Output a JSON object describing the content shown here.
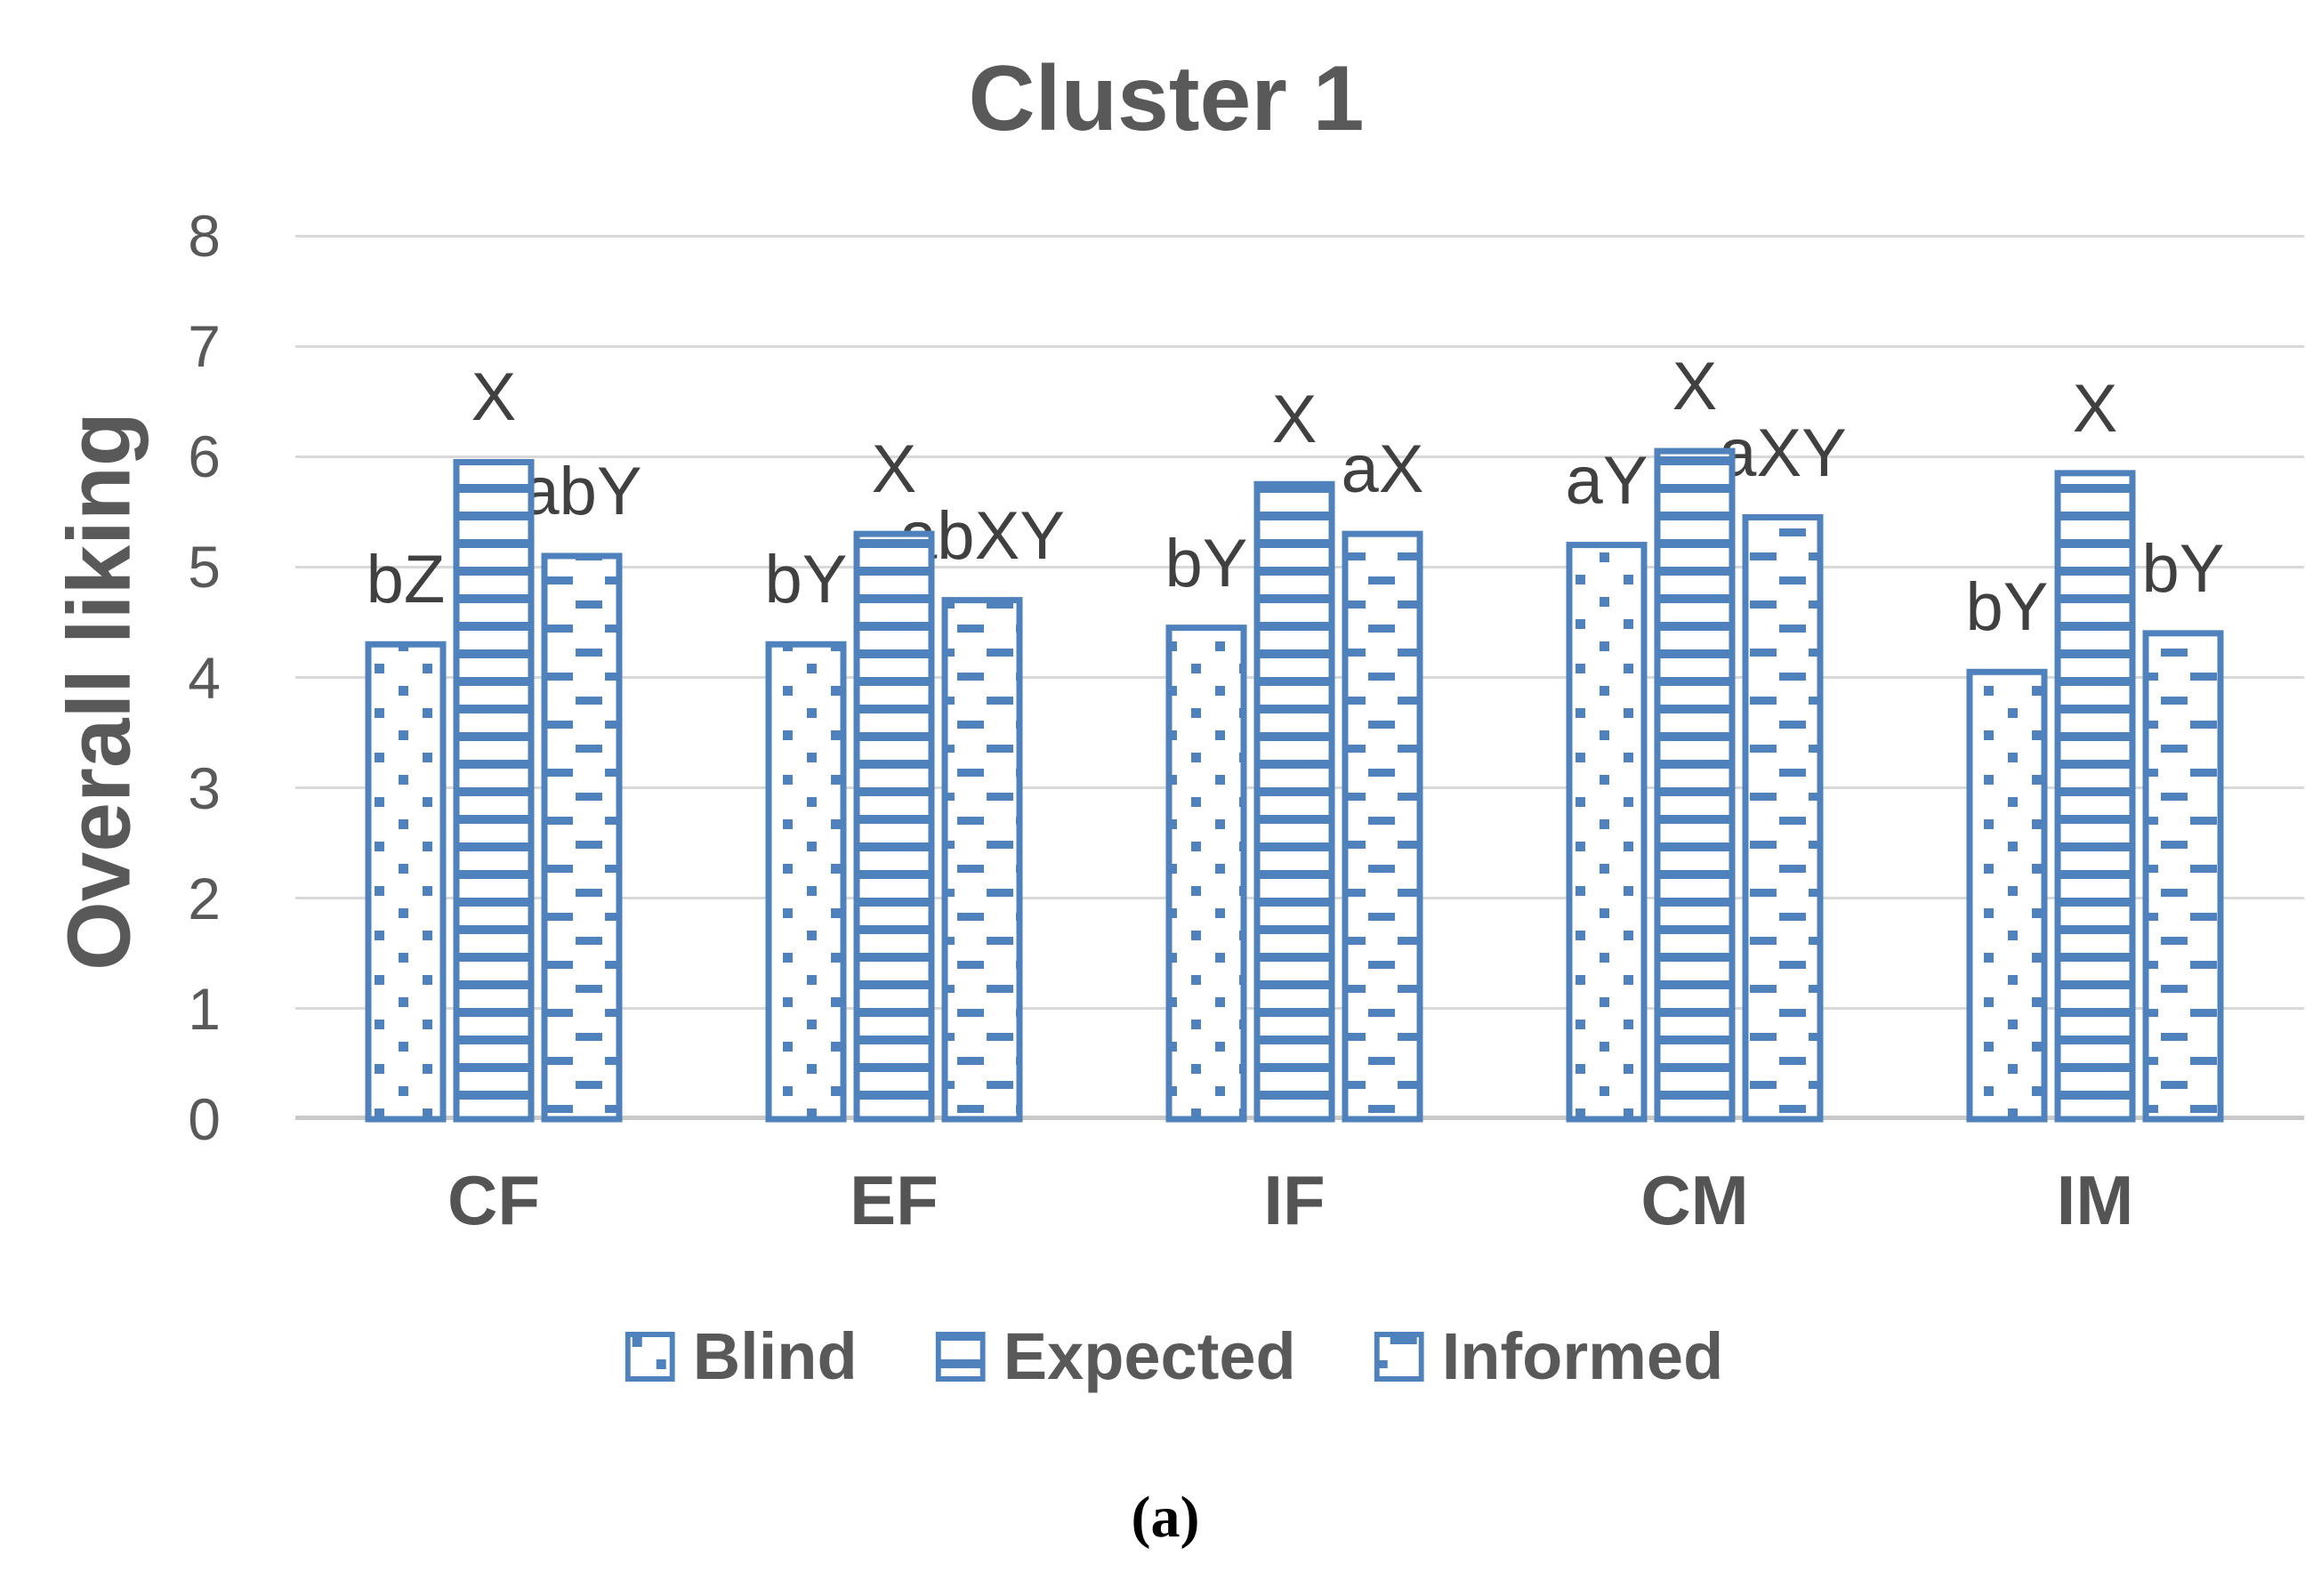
{
  "figure": {
    "caption": "(a)"
  },
  "chart_data": {
    "type": "bar",
    "title": "Cluster 1",
    "xlabel": "",
    "ylabel": "Overall liking",
    "ylim": [
      0,
      8
    ],
    "yticks": [
      0,
      1,
      2,
      3,
      4,
      5,
      6,
      7,
      8
    ],
    "grid": true,
    "legend_position": "bottom",
    "categories": [
      "CF",
      "EF",
      "IF",
      "CM",
      "IM"
    ],
    "series": [
      {
        "name": "Blind",
        "pattern": "dots",
        "values": [
          4.3,
          4.3,
          4.45,
          5.2,
          4.05
        ]
      },
      {
        "name": "Expected",
        "pattern": "hlines",
        "values": [
          5.95,
          5.3,
          5.75,
          6.05,
          5.85
        ]
      },
      {
        "name": "Informed",
        "pattern": "dashes",
        "values": [
          5.1,
          4.7,
          5.3,
          5.45,
          4.4
        ]
      }
    ],
    "annotations": [
      {
        "category": "CF",
        "labels": [
          "bZ",
          "X",
          "abY"
        ]
      },
      {
        "category": "EF",
        "labels": [
          "bY",
          "X",
          "abXY"
        ]
      },
      {
        "category": "IF",
        "labels": [
          "bY",
          "X",
          "aX"
        ]
      },
      {
        "category": "CM",
        "labels": [
          "aY",
          "X",
          "aXY"
        ]
      },
      {
        "category": "IM",
        "labels": [
          "bY",
          "X",
          "bY"
        ]
      }
    ],
    "colors": {
      "bar_blue": "#4f81bd",
      "gridline": "#d9d9d9",
      "axis_line": "#c9c9c9",
      "text": "#595959",
      "annotation": "#404040",
      "caption": "#000000"
    }
  }
}
